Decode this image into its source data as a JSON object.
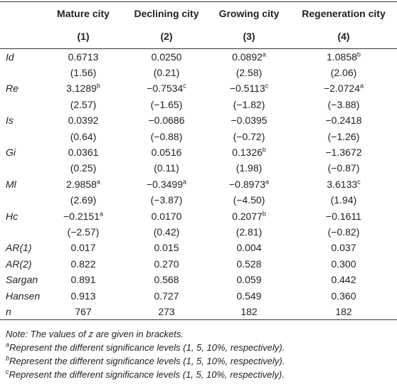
{
  "table": {
    "columns": [
      "Mature city",
      "Declining city",
      "Growing city",
      "Regeneration city"
    ],
    "numbers": [
      "(1)",
      "(2)",
      "(3)",
      "(4)"
    ],
    "rows": [
      {
        "label": "Id",
        "cells": [
          {
            "text": "0.6713"
          },
          {
            "text": "0.0250"
          },
          {
            "text": "0.0892",
            "sup": "a"
          },
          {
            "text": "1.0858",
            "sup": "b"
          }
        ]
      },
      {
        "cells": [
          {
            "text": "(1.56)"
          },
          {
            "text": "(0.21)"
          },
          {
            "text": "(2.58)"
          },
          {
            "text": "(2.06)"
          }
        ]
      },
      {
        "label": "Re",
        "cells": [
          {
            "text": "3.1289",
            "sup": "b"
          },
          {
            "text": "−0.7534",
            "sup": "c"
          },
          {
            "text": "−0.5113",
            "sup": "c"
          },
          {
            "text": "−2.0724",
            "sup": "a"
          }
        ]
      },
      {
        "cells": [
          {
            "text": "(2.57)"
          },
          {
            "text": "(−1.65)"
          },
          {
            "text": "(−1.82)"
          },
          {
            "text": "(−3.88)"
          }
        ]
      },
      {
        "label": "Is",
        "cells": [
          {
            "text": "0.0392"
          },
          {
            "text": "−0.0686"
          },
          {
            "text": "−0.0395"
          },
          {
            "text": "−0.2418"
          }
        ]
      },
      {
        "cells": [
          {
            "text": "(0.64)"
          },
          {
            "text": "(−0.88)"
          },
          {
            "text": "(−0.72)"
          },
          {
            "text": "(−1.26)"
          }
        ]
      },
      {
        "label": "Gi",
        "cells": [
          {
            "text": "0.0361"
          },
          {
            "text": "0.0516"
          },
          {
            "text": "0.1326",
            "sup": "b"
          },
          {
            "text": "−1.3672"
          }
        ]
      },
      {
        "cells": [
          {
            "text": "(0.25)"
          },
          {
            "text": "(0.11)"
          },
          {
            "text": "(1.98)"
          },
          {
            "text": "(−0.87)"
          }
        ]
      },
      {
        "label": "Ml",
        "cells": [
          {
            "text": "2.9858",
            "sup": "a"
          },
          {
            "text": "−0.3499",
            "sup": "a"
          },
          {
            "text": "−0.8973",
            "sup": "a"
          },
          {
            "text": "3.6133",
            "sup": "c"
          }
        ]
      },
      {
        "cells": [
          {
            "text": "(2.69)"
          },
          {
            "text": "(−3.87)"
          },
          {
            "text": "(−4.50)"
          },
          {
            "text": "(1.94)"
          }
        ]
      },
      {
        "label": "Hc",
        "cells": [
          {
            "text": "−0.2151",
            "sup": "a"
          },
          {
            "text": "0.0170"
          },
          {
            "text": "0.2077",
            "sup": "b"
          },
          {
            "text": "−0.1611"
          }
        ]
      },
      {
        "cells": [
          {
            "text": "(−2.57)"
          },
          {
            "text": "(0.42)"
          },
          {
            "text": "(2.81)"
          },
          {
            "text": "(−0.82)"
          }
        ]
      },
      {
        "label": "AR(1)",
        "cells": [
          {
            "text": "0.017"
          },
          {
            "text": "0.015"
          },
          {
            "text": "0.004"
          },
          {
            "text": "0.037"
          }
        ]
      },
      {
        "label": "AR(2)",
        "cells": [
          {
            "text": "0.822"
          },
          {
            "text": "0.270"
          },
          {
            "text": "0.528"
          },
          {
            "text": "0.300"
          }
        ]
      },
      {
        "label": "Sargan",
        "cells": [
          {
            "text": "0.891"
          },
          {
            "text": "0.568"
          },
          {
            "text": "0.059"
          },
          {
            "text": "0.442"
          }
        ]
      },
      {
        "label": "Hansen",
        "cells": [
          {
            "text": "0.913"
          },
          {
            "text": "0.727"
          },
          {
            "text": "0.549"
          },
          {
            "text": "0.360"
          }
        ]
      },
      {
        "label": "n",
        "cells": [
          {
            "text": "767"
          },
          {
            "text": "273"
          },
          {
            "text": "182"
          },
          {
            "text": "182"
          }
        ]
      }
    ]
  },
  "notes": {
    "note": "Note: The values of z are given in brackets.",
    "footnotes": [
      {
        "mark": "a",
        "text": "Represent the different significance levels (1, 5, 10%, respectively)."
      },
      {
        "mark": "b",
        "text": "Represent the different significance levels (1, 5, 10%, respectively)."
      },
      {
        "mark": "c",
        "text": "Represent the different significance levels (1, 5, 10%, respectively)."
      }
    ]
  }
}
